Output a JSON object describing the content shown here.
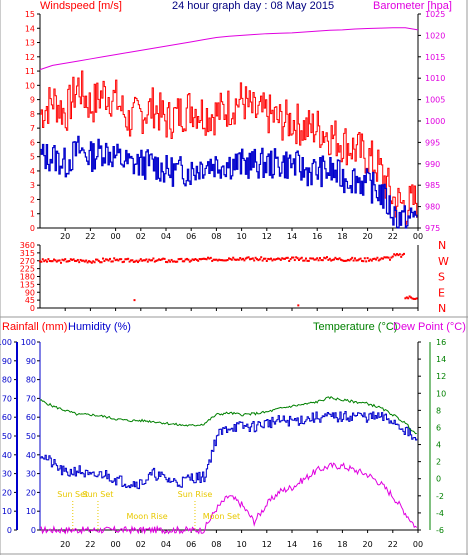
{
  "colors": {
    "wind": "#ff0000",
    "gust": "#d00000",
    "avg": "#0000cc",
    "baro": "#e000e0",
    "dir": "#ff0000",
    "rain": "#0000cc",
    "hum": "#0000cc",
    "temp": "#008000",
    "dew": "#e000e0",
    "label": "#ff0000",
    "sun": "#e8c800",
    "axis": "#000000",
    "grid": "#c8c8c8"
  },
  "titles": {
    "windspeed": "Windspeed [m/s]",
    "day": "24 hour graph day : 08 May 2015",
    "barometer": "Barometer [hpa]",
    "rainfall": "Rainfall (mm)",
    "humidity": "Humidity (%)",
    "temperature": "Temperature (°C)",
    "dewpoint": "Dew Point (°C)"
  },
  "x_ticks": [
    "20",
    "22",
    "00",
    "02",
    "04",
    "06",
    "08",
    "10",
    "12",
    "14",
    "16",
    "18",
    "20",
    "22",
    "00"
  ],
  "compass": [
    "N",
    "W",
    "S",
    "E",
    "N"
  ],
  "sun_labels": [
    "Sun Set",
    "Sun Rise",
    "Sun Set"
  ],
  "moon_labels": [
    "Moon Rise",
    "Moon Set"
  ],
  "bottom_ticks": [
    "20",
    "Sun Set",
    "22",
    "00",
    "02",
    "04",
    "06",
    "08",
    "10",
    "12",
    "14",
    "16",
    "18",
    "20",
    "Sun Set",
    "22",
    "00"
  ],
  "chart_data": [
    {
      "type": "line",
      "name": "wind",
      "xlabel": "",
      "ylabel": "Windspeed [m/s]",
      "ylim": [
        0,
        15
      ],
      "y_ticks": [
        "0",
        "1",
        "2",
        "3",
        "4",
        "5",
        "6",
        "7",
        "8",
        "9",
        "10",
        "11",
        "12",
        "13",
        "14",
        "15"
      ],
      "y2label": "Barometer [hpa]",
      "y2lim": [
        975,
        1025
      ],
      "y2_ticks": [
        "975",
        "980",
        "985",
        "990",
        "995",
        "1000",
        "1005",
        "1010",
        "1015",
        "1020",
        "1025"
      ],
      "x_hours": [
        18,
        19,
        20,
        21,
        22,
        23,
        0,
        1,
        2,
        3,
        4,
        5,
        6,
        7,
        8,
        9,
        10,
        11,
        12,
        13,
        14,
        15,
        16,
        17,
        18,
        19,
        20,
        21,
        22,
        23,
        0
      ],
      "series": [
        {
          "name": "gust",
          "values": [
            8,
            9,
            8,
            10,
            8.5,
            9.5,
            9,
            7.5,
            8,
            8.5,
            7.5,
            8,
            8.5,
            8,
            8,
            8.5,
            9,
            8,
            8,
            7.5,
            7.5,
            7,
            7,
            6.5,
            6,
            5.5,
            5,
            4,
            2,
            1.5,
            2
          ]
        },
        {
          "name": "average",
          "values": [
            5,
            5,
            4.5,
            5.5,
            5,
            5.5,
            5,
            4.5,
            4.5,
            4.5,
            4,
            4,
            4,
            4.5,
            4.5,
            4.5,
            4.5,
            4.5,
            4.5,
            4.5,
            4.5,
            4,
            4,
            4,
            3.5,
            3.5,
            3,
            2.5,
            1,
            0.5,
            1
          ]
        },
        {
          "name": "barometer",
          "values": [
            1012,
            1013,
            1013.5,
            1014,
            1014.5,
            1015,
            1015.5,
            1016,
            1016.5,
            1017,
            1017.5,
            1018,
            1018.5,
            1019,
            1019.5,
            1019.8,
            1020,
            1020.2,
            1020.4,
            1020.5,
            1020.6,
            1020.8,
            1021,
            1021.2,
            1021.3,
            1021.5,
            1021.6,
            1021.7,
            1021.8,
            1021.8,
            1021.3
          ]
        }
      ]
    },
    {
      "type": "scatter",
      "name": "wind direction",
      "ylim": [
        0,
        360
      ],
      "y_ticks": [
        "0",
        "45",
        "90",
        "135",
        "180",
        "225",
        "270",
        "315",
        "360"
      ],
      "x_hours": [
        18,
        19,
        20,
        21,
        22,
        23,
        0,
        1,
        2,
        3,
        4,
        5,
        6,
        7,
        8,
        9,
        10,
        11,
        12,
        13,
        14,
        15,
        16,
        17,
        18,
        19,
        20,
        21,
        22,
        23,
        0
      ],
      "values": [
        270,
        268,
        272,
        270,
        268,
        275,
        270,
        272,
        270,
        274,
        270,
        272,
        275,
        278,
        280,
        285,
        282,
        280,
        276,
        278,
        280,
        278,
        282,
        280,
        278,
        276,
        280,
        285,
        300,
        60,
        55
      ]
    },
    {
      "type": "line",
      "name": "humidity-temp",
      "ylabel": "Humidity (%)",
      "ylim": [
        0,
        100
      ],
      "y_ticks": [
        "0",
        "10",
        "20",
        "30",
        "40",
        "50",
        "60",
        "70",
        "80",
        "90",
        "100"
      ],
      "y2label": "Temperature (°C)",
      "y2lim": [
        -6,
        16
      ],
      "y2_ticks": [
        "-6",
        "-4",
        "-2",
        "0",
        "2",
        "4",
        "6",
        "8",
        "10",
        "12",
        "14",
        "16"
      ],
      "x_hours": [
        18,
        19,
        20,
        21,
        22,
        23,
        0,
        1,
        2,
        3,
        4,
        5,
        6,
        7,
        8,
        9,
        10,
        11,
        12,
        13,
        14,
        15,
        16,
        17,
        18,
        19,
        20,
        21,
        22,
        23,
        0
      ],
      "series": [
        {
          "name": "humidity",
          "values": [
            41,
            35,
            30,
            32,
            28,
            30,
            27,
            25,
            25,
            30,
            27,
            25,
            28,
            28,
            50,
            55,
            55,
            55,
            57,
            58,
            58,
            59,
            60,
            60,
            60,
            61,
            60,
            60,
            58,
            53,
            46
          ]
        },
        {
          "name": "temperature",
          "values": [
            9.2,
            8.5,
            8,
            7.5,
            7.5,
            7.3,
            7,
            6.8,
            6.8,
            6.7,
            6.5,
            6.3,
            6.2,
            6.4,
            7.5,
            7.7,
            7.5,
            7.6,
            7.8,
            8.2,
            8.5,
            8.7,
            9,
            9.5,
            9.2,
            9,
            8.8,
            8.3,
            7.5,
            6.5,
            5
          ]
        },
        {
          "name": "dew point",
          "values": [
            -6,
            -6,
            -6,
            -6,
            -6,
            -6,
            -6,
            -6,
            -6,
            -6,
            -6,
            -6,
            -6,
            -6,
            -3.5,
            -2,
            -3,
            -5,
            -3,
            -1.5,
            -1,
            0,
            1,
            1.5,
            1.5,
            1,
            0.5,
            -0.5,
            -2,
            -4,
            -6
          ]
        },
        {
          "name": "rainfall",
          "values": [
            0,
            0,
            0,
            0,
            0,
            0,
            0,
            0,
            0,
            0,
            0,
            0,
            0,
            0,
            0,
            0,
            0,
            0,
            0,
            0,
            0,
            0,
            0,
            0,
            0,
            0,
            0,
            0,
            0,
            0,
            0
          ]
        }
      ],
      "sun_events": {
        "sun_set_1": 20.6,
        "sun_rise": 6.3,
        "sun_set_2": 22.6,
        "moon_rise": 2.5,
        "moon_set": 8.4
      }
    }
  ]
}
